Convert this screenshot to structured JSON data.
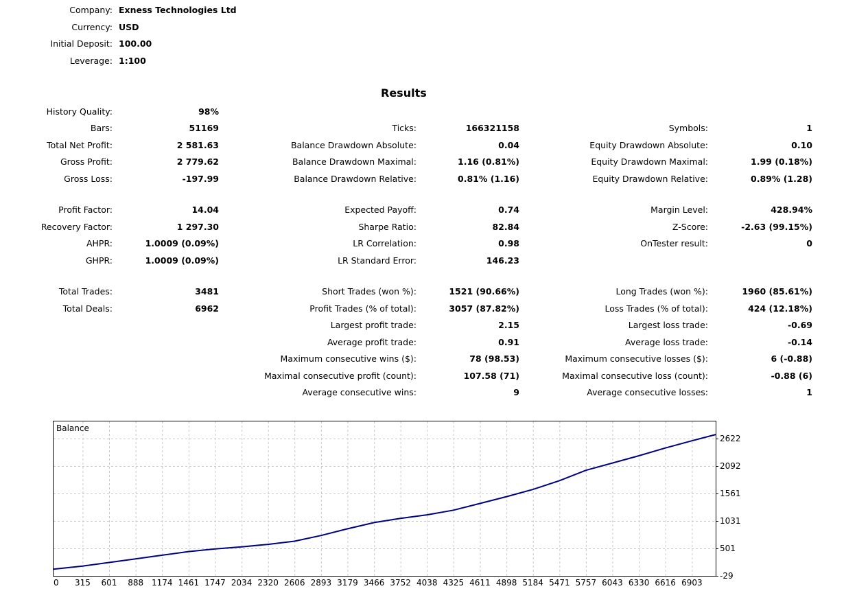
{
  "header": {
    "company_label": "Company:",
    "company_value": "Exness Technologies Ltd",
    "currency_label": "Currency:",
    "currency_value": "USD",
    "deposit_label": "Initial Deposit:",
    "deposit_value": "100.00",
    "leverage_label": "Leverage:",
    "leverage_value": "1:100"
  },
  "results_title": "Results",
  "col1": [
    {
      "label": "History Quality:",
      "value": "98%"
    },
    {
      "label": "Bars:",
      "value": "51169"
    },
    {
      "label": "Total Net Profit:",
      "value": "2 581.63"
    },
    {
      "label": "Gross Profit:",
      "value": "2 779.62"
    },
    {
      "label": "Gross Loss:",
      "value": "-197.99"
    },
    {
      "label": "Profit Factor:",
      "value": "14.04"
    },
    {
      "label": "Recovery Factor:",
      "value": "1 297.30"
    },
    {
      "label": "AHPR:",
      "value": "1.0009 (0.09%)"
    },
    {
      "label": "GHPR:",
      "value": "1.0009 (0.09%)"
    },
    {
      "label": "Total Trades:",
      "value": "3481"
    },
    {
      "label": "Total Deals:",
      "value": "6962"
    }
  ],
  "col2": [
    {
      "label": "Ticks:",
      "value": "166321158"
    },
    {
      "label": "Balance Drawdown Absolute:",
      "value": "0.04"
    },
    {
      "label": "Balance Drawdown Maximal:",
      "value": "1.16 (0.81%)"
    },
    {
      "label": "Balance Drawdown Relative:",
      "value": "0.81% (1.16)"
    },
    {
      "label": "Expected Payoff:",
      "value": "0.74"
    },
    {
      "label": "Sharpe Ratio:",
      "value": "82.84"
    },
    {
      "label": "LR Correlation:",
      "value": "0.98"
    },
    {
      "label": "LR Standard Error:",
      "value": "146.23"
    },
    {
      "label": "Short Trades (won %):",
      "value": "1521 (90.66%)"
    },
    {
      "label": "Profit Trades (% of total):",
      "value": "3057 (87.82%)"
    },
    {
      "label": "Largest profit trade:",
      "value": "2.15"
    },
    {
      "label": "Average profit trade:",
      "value": "0.91"
    },
    {
      "label": "Maximum consecutive wins ($):",
      "value": "78 (98.53)"
    },
    {
      "label": "Maximal consecutive profit (count):",
      "value": "107.58 (71)"
    },
    {
      "label": "Average consecutive wins:",
      "value": "9"
    }
  ],
  "col3": [
    {
      "label": "Symbols:",
      "value": "1"
    },
    {
      "label": "Equity Drawdown Absolute:",
      "value": "0.10"
    },
    {
      "label": "Equity Drawdown Maximal:",
      "value": "1.99 (0.18%)"
    },
    {
      "label": "Equity Drawdown Relative:",
      "value": "0.89% (1.28)"
    },
    {
      "label": "Margin Level:",
      "value": "428.94%"
    },
    {
      "label": "Z-Score:",
      "value": "-2.63 (99.15%)"
    },
    {
      "label": "OnTester result:",
      "value": "0"
    },
    {
      "label": "Long Trades (won %):",
      "value": "1960 (85.61%)"
    },
    {
      "label": "Loss Trades (% of total):",
      "value": "424 (12.18%)"
    },
    {
      "label": "Largest loss trade:",
      "value": "-0.69"
    },
    {
      "label": "Average loss trade:",
      "value": "-0.14"
    },
    {
      "label": "Maximum consecutive losses ($):",
      "value": "6 (-0.88)"
    },
    {
      "label": "Maximal consecutive loss (count):",
      "value": "-0.88 (6)"
    },
    {
      "label": "Average consecutive losses:",
      "value": "1"
    }
  ],
  "chart_data": {
    "type": "line",
    "title": "Balance",
    "x_ticks": [
      "0",
      "315",
      "601",
      "888",
      "1174",
      "1461",
      "1747",
      "2034",
      "2320",
      "2606",
      "2893",
      "3179",
      "3466",
      "3752",
      "4038",
      "4325",
      "4611",
      "4898",
      "5184",
      "5471",
      "5757",
      "6043",
      "6330",
      "6616",
      "6903"
    ],
    "y_ticks": [
      "2622",
      "2092",
      "1561",
      "1031",
      "501",
      "-29"
    ],
    "xlim": [
      0,
      7160
    ],
    "ylim": [
      -29,
      2622
    ],
    "grid": true,
    "line_color": "#000080",
    "series": [
      {
        "x": [
          0,
          315,
          601,
          888,
          1174,
          1461,
          1747,
          2034,
          2320,
          2606,
          2893,
          3179,
          3466,
          3752,
          4038,
          4325,
          4611,
          4898,
          5184,
          5471,
          5757,
          6043,
          6330,
          6616,
          6903,
          7160
        ],
        "y": [
          100,
          160,
          230,
          300,
          370,
          440,
          490,
          530,
          580,
          640,
          750,
          880,
          1000,
          1080,
          1150,
          1240,
          1370,
          1500,
          1640,
          1810,
          2010,
          2150,
          2290,
          2440,
          2580,
          2700
        ]
      }
    ]
  }
}
